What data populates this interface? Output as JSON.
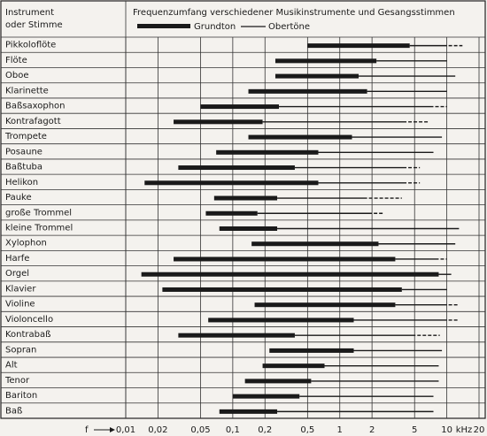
{
  "chart_data": {
    "type": "range",
    "title": "Frequenzumfang verschiedener Musikinstrumente und Gesangsstimmen",
    "column_header": [
      "Instrument",
      "oder Stimme"
    ],
    "legend": [
      "Grundton",
      "Obertöne"
    ],
    "x_label": "f",
    "x_unit": "kHz",
    "log_x": true,
    "grid": true,
    "color": "#1a1a1a",
    "xlim": [
      0.01,
      20
    ],
    "xticks": [
      {
        "value": 0.01,
        "label": "0,01"
      },
      {
        "value": 0.02,
        "label": "0,02"
      },
      {
        "value": 0.05,
        "label": "0,05"
      },
      {
        "value": 0.1,
        "label": "0,1"
      },
      {
        "value": 0.2,
        "label": "0,2"
      },
      {
        "value": 0.5,
        "label": "0,5"
      },
      1,
      2,
      5,
      10,
      20
    ],
    "rows": [
      {
        "name": "Pikkoloflöte",
        "fundamental": [
          0.5,
          4.5
        ],
        "overtone": 10,
        "dashed": 14
      },
      {
        "name": "Flöte",
        "fundamental": [
          0.25,
          2.2
        ],
        "overtone": 10
      },
      {
        "name": "Oboe",
        "fundamental": [
          0.25,
          1.5
        ],
        "overtone": 12
      },
      {
        "name": "Klarinette",
        "fundamental": [
          0.14,
          1.8
        ],
        "overtone": 10
      },
      {
        "name": "Baßsaxophon",
        "fundamental": [
          0.05,
          0.27
        ],
        "overtone": 7.5,
        "dashed": 10
      },
      {
        "name": "Kontrafagott",
        "fundamental": [
          0.028,
          0.19
        ],
        "overtone": 4.2,
        "dashed": 6.8
      },
      {
        "name": "Trompete",
        "fundamental": [
          0.14,
          1.3
        ],
        "overtone": 9
      },
      {
        "name": "Posaune",
        "fundamental": [
          0.07,
          0.63
        ],
        "overtone": 7.5
      },
      {
        "name": "Baßtuba",
        "fundamental": [
          0.031,
          0.38
        ],
        "overtone": 4.2,
        "dashed": 5.6
      },
      {
        "name": "Helikon",
        "fundamental": [
          0.015,
          0.63
        ],
        "overtone": 4.2,
        "dashed": 5.6
      },
      {
        "name": "Pauke",
        "fundamental": [
          0.067,
          0.26
        ],
        "overtone": 1.8,
        "dashed": 3.8
      },
      {
        "name": "große Trommel",
        "fundamental": [
          0.056,
          0.17
        ],
        "overtone": 2,
        "dashed": 2.6
      },
      {
        "name": "kleine Trommel",
        "fundamental": [
          0.075,
          0.26
        ],
        "overtone": 13
      },
      {
        "name": "Xylophon",
        "fundamental": [
          0.15,
          2.3
        ],
        "overtone": 12
      },
      {
        "name": "Harfe",
        "fundamental": [
          0.028,
          3.3
        ],
        "overtone": 8.4,
        "dashed": 10
      },
      {
        "name": "Orgel",
        "fundamental": [
          0.014,
          8.4
        ],
        "overtone": 11
      },
      {
        "name": "Klavier",
        "fundamental": [
          0.022,
          3.8
        ],
        "overtone": 10
      },
      {
        "name": "Violine",
        "fundamental": [
          0.16,
          3.3
        ],
        "overtone": 10,
        "dashed": 13
      },
      {
        "name": "Violoncello",
        "fundamental": [
          0.059,
          1.35
        ],
        "overtone": 10,
        "dashed": 13
      },
      {
        "name": "Kontrabaß",
        "fundamental": [
          0.031,
          0.38
        ],
        "overtone": 5.1,
        "dashed": 8.6
      },
      {
        "name": "Sopran",
        "fundamental": [
          0.22,
          1.35
        ],
        "overtone": 9
      },
      {
        "name": "Alt",
        "fundamental": [
          0.19,
          0.72
        ],
        "overtone": 8.4
      },
      {
        "name": "Tenor",
        "fundamental": [
          0.13,
          0.54
        ],
        "overtone": 8.4
      },
      {
        "name": "Bariton",
        "fundamental": [
          0.1,
          0.42
        ],
        "overtone": 7.5
      },
      {
        "name": "Baß",
        "fundamental": [
          0.075,
          0.26
        ],
        "overtone": 7.5
      }
    ]
  }
}
